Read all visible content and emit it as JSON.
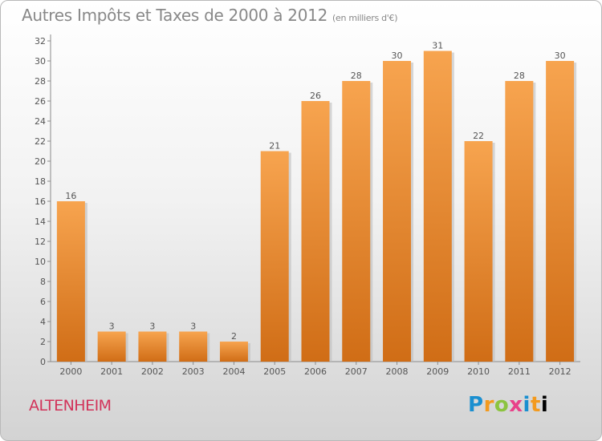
{
  "header": {
    "title": "Autres Impôts et Taxes de 2000 à 2012",
    "unit": "(en milliers d'€)"
  },
  "footer": {
    "commune": "ALTENHEIM",
    "brand": "Proxiti"
  },
  "colors": {
    "bar_top": "#f7a44f",
    "bar_bottom": "#d06d16",
    "commune": "#d2335a"
  },
  "chart_data": {
    "type": "bar",
    "categories": [
      "2000",
      "2001",
      "2002",
      "2003",
      "2004",
      "2005",
      "2006",
      "2007",
      "2008",
      "2009",
      "2010",
      "2011",
      "2012"
    ],
    "values": [
      16,
      3,
      3,
      3,
      2,
      21,
      26,
      28,
      30,
      31,
      22,
      28,
      30
    ],
    "ylim": [
      0,
      32
    ],
    "yticks": [
      0,
      2,
      4,
      6,
      8,
      10,
      12,
      14,
      16,
      18,
      20,
      22,
      24,
      26,
      28,
      30,
      32
    ],
    "grid": false,
    "data_labels": true
  }
}
